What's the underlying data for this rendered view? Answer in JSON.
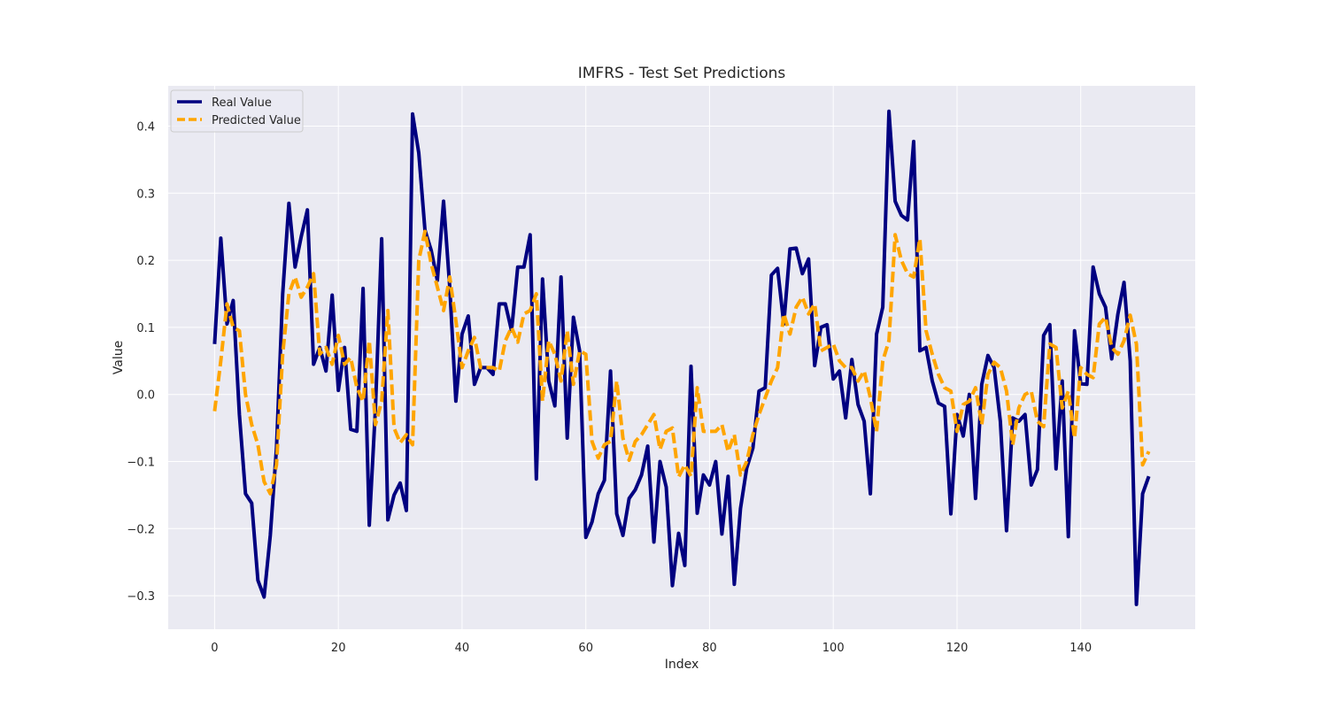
{
  "chart_data": {
    "type": "line",
    "title": "IMFRS - Test Set Predictions",
    "xlabel": "Index",
    "ylabel": "Value",
    "xlim": [
      -7.5,
      158.5
    ],
    "ylim": [
      -0.35,
      0.46
    ],
    "xticks": [
      0,
      20,
      40,
      60,
      80,
      100,
      120,
      140
    ],
    "yticks": [
      -0.3,
      -0.2,
      -0.1,
      0.0,
      0.1,
      0.2,
      0.3,
      0.4
    ],
    "ytick_labels": [
      "−0.3",
      "−0.2",
      "−0.1",
      "0.0",
      "0.1",
      "0.2",
      "0.3",
      "0.4"
    ],
    "grid": true,
    "legend_position": "upper-left",
    "colors": {
      "background": "#eaeaf2",
      "grid": "#ffffff",
      "real": "#000080",
      "predicted": "#ffa500"
    },
    "series": [
      {
        "name": "Real Value",
        "style": "solid",
        "color": "#000080",
        "values": [
          0.075,
          0.233,
          0.105,
          0.14,
          -0.03,
          -0.148,
          -0.162,
          -0.277,
          -0.302,
          -0.21,
          -0.08,
          0.15,
          0.285,
          0.19,
          0.235,
          0.275,
          0.045,
          0.07,
          0.035,
          0.148,
          0.006,
          0.07,
          -0.052,
          -0.055,
          0.158,
          -0.195,
          -0.02,
          0.232,
          -0.187,
          -0.15,
          -0.132,
          -0.173,
          0.418,
          0.36,
          0.245,
          0.215,
          0.17,
          0.288,
          0.16,
          -0.01,
          0.09,
          0.117,
          0.015,
          0.04,
          0.04,
          0.03,
          0.135,
          0.135,
          0.095,
          0.19,
          0.19,
          0.238,
          -0.126,
          0.172,
          0.02,
          -0.017,
          0.175,
          -0.065,
          0.115,
          0.065,
          -0.213,
          -0.19,
          -0.148,
          -0.128,
          0.035,
          -0.178,
          -0.21,
          -0.155,
          -0.142,
          -0.12,
          -0.077,
          -0.22,
          -0.1,
          -0.138,
          -0.285,
          -0.207,
          -0.255,
          0.042,
          -0.177,
          -0.12,
          -0.135,
          -0.1,
          -0.208,
          -0.122,
          -0.283,
          -0.17,
          -0.11,
          -0.08,
          0.005,
          0.01,
          0.178,
          0.188,
          0.105,
          0.217,
          0.218,
          0.18,
          0.202,
          0.043,
          0.1,
          0.104,
          0.023,
          0.035,
          -0.035,
          0.052,
          -0.015,
          -0.04,
          -0.148,
          0.09,
          0.13,
          0.422,
          0.288,
          0.267,
          0.26,
          0.377,
          0.065,
          0.07,
          0.02,
          -0.013,
          -0.018,
          -0.178,
          -0.03,
          -0.062,
          0.0,
          -0.155,
          0.015,
          0.058,
          0.04,
          -0.04,
          -0.203,
          -0.035,
          -0.04,
          -0.03,
          -0.135,
          -0.112,
          0.088,
          0.104,
          -0.111,
          0.02,
          -0.212,
          0.095,
          0.016,
          0.015,
          0.19,
          0.15,
          0.13,
          0.053,
          0.12,
          0.167,
          0.05,
          -0.313,
          -0.148,
          -0.122
        ]
      },
      {
        "name": "Predicted Value",
        "style": "dashed",
        "color": "#ffa500",
        "values": [
          -0.025,
          0.05,
          0.135,
          0.1,
          0.095,
          0.0,
          -0.045,
          -0.075,
          -0.13,
          -0.148,
          -0.105,
          0.06,
          0.15,
          0.175,
          0.145,
          0.16,
          0.18,
          0.06,
          0.07,
          0.045,
          0.088,
          0.045,
          0.055,
          0.01,
          -0.01,
          0.08,
          -0.045,
          -0.01,
          0.125,
          -0.05,
          -0.072,
          -0.06,
          -0.075,
          0.2,
          0.243,
          0.195,
          0.16,
          0.125,
          0.175,
          0.11,
          0.04,
          0.065,
          0.085,
          0.04,
          0.04,
          0.04,
          0.035,
          0.08,
          0.1,
          0.078,
          0.12,
          0.125,
          0.15,
          -0.01,
          0.08,
          0.06,
          0.02,
          0.095,
          0.015,
          0.065,
          0.06,
          -0.07,
          -0.095,
          -0.075,
          -0.07,
          0.02,
          -0.065,
          -0.098,
          -0.07,
          -0.06,
          -0.045,
          -0.03,
          -0.082,
          -0.055,
          -0.05,
          -0.123,
          -0.105,
          -0.122,
          0.01,
          -0.055,
          -0.055,
          -0.055,
          -0.045,
          -0.085,
          -0.06,
          -0.12,
          -0.1,
          -0.06,
          -0.03,
          -0.005,
          0.02,
          0.04,
          0.12,
          0.09,
          0.13,
          0.145,
          0.12,
          0.135,
          0.065,
          0.07,
          0.075,
          0.05,
          0.04,
          0.04,
          0.02,
          0.035,
          -0.005,
          -0.055,
          0.05,
          0.08,
          0.238,
          0.2,
          0.18,
          0.175,
          0.232,
          0.095,
          0.06,
          0.03,
          0.01,
          0.005,
          -0.055,
          -0.015,
          -0.01,
          0.01,
          -0.045,
          0.03,
          0.048,
          0.04,
          0.005,
          -0.075,
          -0.02,
          0.0,
          0.005,
          -0.04,
          -0.048,
          0.075,
          0.07,
          -0.02,
          0.005,
          -0.065,
          0.04,
          0.03,
          0.025,
          0.105,
          0.115,
          0.07,
          0.06,
          0.08,
          0.118,
          0.075,
          -0.105,
          -0.085
        ]
      }
    ]
  }
}
